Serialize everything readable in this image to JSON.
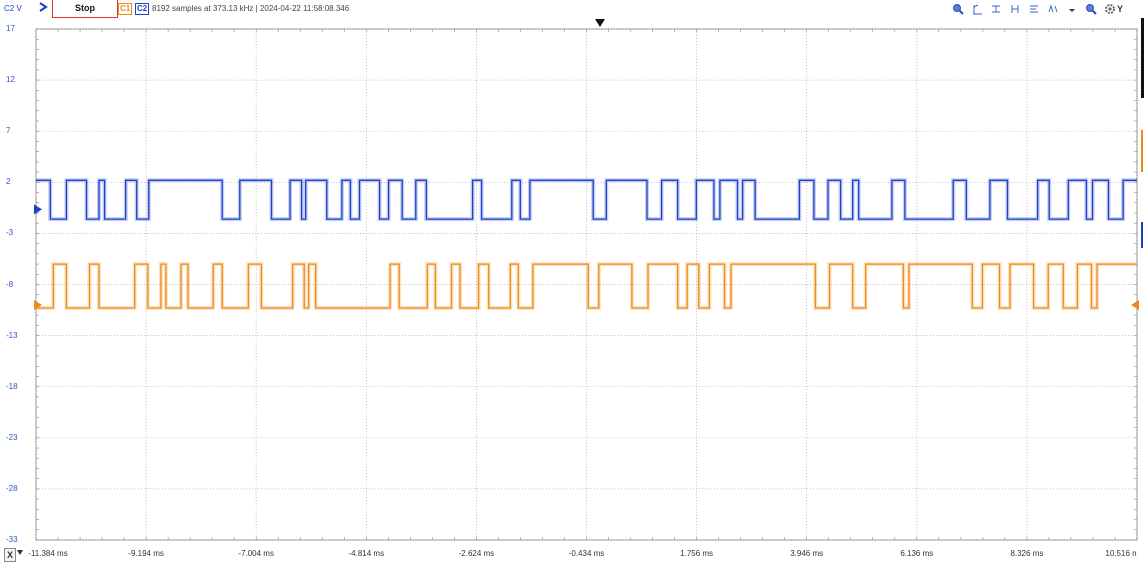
{
  "toolbar": {
    "y_channel_label": "C2 V",
    "stop_label": "Stop",
    "ch1_label": "C1",
    "ch2_label": "C2",
    "acquisition_info": "8192 samples at 373.13 kHz  |  2024-04-22 11:58:08.346",
    "y_button_label": "Y",
    "icons": [
      "zoom-in-icon",
      "cursor-v-icon",
      "cursor-h-icon",
      "measure-icon",
      "bars-icon",
      "scale-icon",
      "dropdown-icon",
      "zoom-out-icon",
      "settings-icon"
    ]
  },
  "y_axis": {
    "labels": [
      "17",
      "12",
      "7",
      "2",
      "-3",
      "-8",
      "-13",
      "-18",
      "-23",
      "-28",
      "-33"
    ],
    "range": [
      -33,
      17
    ]
  },
  "x_axis": {
    "button_label": "X",
    "labels": [
      "-11.384 ms",
      "-9.194 ms",
      "-7.004 ms",
      "-4.814 ms",
      "-2.624 ms",
      "-0.434 ms",
      "1.756 ms",
      "3.946 ms",
      "6.136 ms",
      "8.326 ms",
      "10.516 n"
    ],
    "range_ms": [
      -11.384,
      10.516
    ]
  },
  "colors": {
    "ch1": "#f08a16",
    "ch2": "#1a3fcc",
    "grid": "#c8c8c8",
    "accent_stop": "#dd3333"
  },
  "chart_data": {
    "type": "line",
    "xlabel": "",
    "ylabel": "",
    "ylim": [
      -33,
      17
    ],
    "xlim": [
      -11.384,
      10.516
    ],
    "series": [
      {
        "name": "C2",
        "levels": [
          2.2,
          -1.6
        ],
        "edges_ms": [
          -11.1,
          -10.78,
          -10.38,
          -10.13,
          -10.02,
          -9.6,
          -9.38,
          -9.14,
          -7.68,
          -7.33,
          -6.7,
          -6.33,
          -6.1,
          -6.02,
          -5.6,
          -5.3,
          -5.13,
          -4.95,
          -4.55,
          -4.37,
          -4.1,
          -3.83,
          -3.62,
          -2.7,
          -2.52,
          -1.92,
          -1.75,
          -1.56,
          -0.3,
          -0.04,
          0.77,
          1.06,
          1.38,
          1.75,
          2.1,
          2.22,
          2.57,
          2.67,
          2.92,
          3.8,
          4.09,
          4.37,
          4.62,
          4.86,
          4.98,
          5.64,
          5.9,
          6.86,
          7.12,
          7.59,
          7.94,
          8.54,
          8.77,
          9.15,
          9.51,
          9.63,
          9.95,
          10.24
        ],
        "start_level": "high"
      },
      {
        "name": "C1",
        "levels": [
          -6.0,
          -10.3
        ],
        "edges_ms": [
          -11.04,
          -10.78,
          -10.32,
          -10.13,
          -9.42,
          -9.16,
          -8.9,
          -8.8,
          -8.5,
          -8.36,
          -7.86,
          -7.68,
          -7.16,
          -6.9,
          -6.28,
          -6.05,
          -5.96,
          -5.82,
          -4.34,
          -4.16,
          -3.6,
          -3.44,
          -3.12,
          -2.95,
          -2.58,
          -2.38,
          -1.95,
          -1.79,
          -1.5,
          -0.4,
          -0.19,
          0.47,
          0.79,
          1.38,
          1.57,
          1.8,
          2.01,
          2.31,
          2.44,
          4.12,
          4.4,
          4.86,
          5.12,
          5.87,
          5.98,
          7.24,
          7.44,
          7.78,
          7.99,
          8.46,
          8.75,
          9.05,
          9.33,
          9.61,
          9.72
        ],
        "start_level": "low"
      }
    ]
  }
}
